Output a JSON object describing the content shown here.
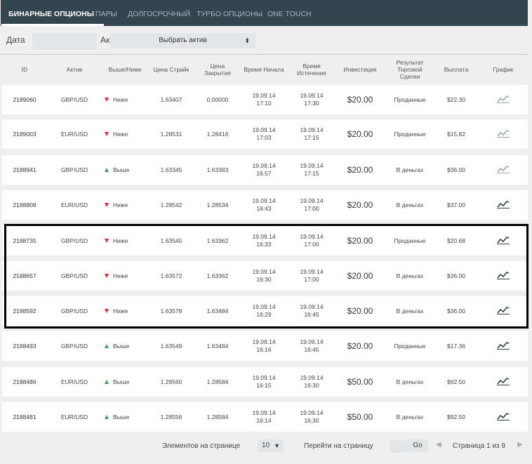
{
  "tabs": [
    {
      "label": "БИНАРНЫЕ ОПЦИОНЫ",
      "active": true
    },
    {
      "label": "ПАРЫ",
      "active": false
    },
    {
      "label": "ДОЛГОСРОЧНЫЙ",
      "active": false
    },
    {
      "label": "ТУРБО ОПЦИОНЫ",
      "active": false
    },
    {
      "label": "ONE TOUCH",
      "active": false
    }
  ],
  "filters": {
    "date_label": "Дата",
    "date_value": "",
    "asset_label": "Актив",
    "asset_select": "Выбрать актив"
  },
  "columns": [
    "ID",
    "Актив",
    "Выше/Ниже",
    "Цена Страйк",
    "Цена\nЗакрытия",
    "Время Начала",
    "Время\nИстечения",
    "Инвестиция",
    "Результат\nТорговой\nСделки",
    "Выплата",
    "График"
  ],
  "rows": [
    {
      "id": "2189060",
      "asset": "GBP/USD",
      "direction": "Ниже",
      "dir_type": "down",
      "strike": "1.63407",
      "close": "0.00000",
      "start": "19.09.14\n17:10",
      "expiry": "19.09.14\n17:30",
      "investment": "$20.00",
      "result": "Проданные",
      "payout": "$22.30",
      "chart_icon": "chart-line-icon",
      "chart_active": false
    },
    {
      "id": "2189003",
      "asset": "EUR/USD",
      "direction": "Ниже",
      "dir_type": "down",
      "strike": "1.28531",
      "close": "1.28416",
      "start": "19.09.14\n17:03",
      "expiry": "19.09.14\n17:15",
      "investment": "$20.00",
      "result": "Проданные",
      "payout": "$15.82",
      "chart_icon": "chart-line-icon",
      "chart_active": false
    },
    {
      "id": "2188941",
      "asset": "GBP/USD",
      "direction": "Выше",
      "dir_type": "up",
      "strike": "1.63345",
      "close": "1.63383",
      "start": "19.09.14\n16:57",
      "expiry": "19.09.14\n17:15",
      "investment": "$20.00",
      "result": "В деньгах",
      "payout": "$36.00",
      "chart_icon": "chart-line-icon",
      "chart_active": false
    },
    {
      "id": "2188808",
      "asset": "EUR/USD",
      "direction": "Ниже",
      "dir_type": "down",
      "strike": "1.28542",
      "close": "1.28534",
      "start": "19.09.14\n16:43",
      "expiry": "19.09.14\n17:00",
      "investment": "$20.00",
      "result": "В деньгах",
      "payout": "$37.00",
      "chart_icon": "chart-line-icon",
      "chart_active": true
    },
    {
      "id": "2188735",
      "asset": "GBP/USD",
      "direction": "Ниже",
      "dir_type": "down",
      "strike": "1.63545",
      "close": "1.63362",
      "start": "19.09.14\n16:33",
      "expiry": "19.09.14\n17:00",
      "investment": "$20.00",
      "result": "Проданные",
      "payout": "$20.68",
      "chart_icon": "chart-line-icon",
      "chart_active": true
    },
    {
      "id": "2188657",
      "asset": "GBP/USD",
      "direction": "Ниже",
      "dir_type": "down",
      "strike": "1.63572",
      "close": "1.63362",
      "start": "19.09.14\n16:30",
      "expiry": "19.09.14\n17:00",
      "investment": "$20.00",
      "result": "В деньгах",
      "payout": "$36.00",
      "chart_icon": "chart-line-icon",
      "chart_active": true
    },
    {
      "id": "2188592",
      "asset": "GBP/USD",
      "direction": "Ниже",
      "dir_type": "down",
      "strike": "1.63578",
      "close": "1.63484",
      "start": "19.09.14\n16:29",
      "expiry": "19.09.14\n16:45",
      "investment": "$20.00",
      "result": "В деньгах",
      "payout": "$36.00",
      "chart_icon": "chart-line-icon",
      "chart_active": true
    },
    {
      "id": "2188493",
      "asset": "GBP/USD",
      "direction": "Выше",
      "dir_type": "up",
      "strike": "1.63549",
      "close": "1.63484",
      "start": "19.09.14\n16:16",
      "expiry": "19.09.14\n16:45",
      "investment": "$20.00",
      "result": "Проданные",
      "payout": "$17.36",
      "chart_icon": "chart-line-icon",
      "chart_active": true
    },
    {
      "id": "2188486",
      "asset": "EUR/USD",
      "direction": "Выше",
      "dir_type": "up",
      "strike": "1.28560",
      "close": "1.28584",
      "start": "19.09.14\n16:15",
      "expiry": "19.09.14\n16:30",
      "investment": "$50.00",
      "result": "В деньгах",
      "payout": "$92.50",
      "chart_icon": "chart-line-icon",
      "chart_active": true
    },
    {
      "id": "2188481",
      "asset": "EUR/USD",
      "direction": "Выше",
      "dir_type": "up",
      "strike": "1.28556",
      "close": "1.28584",
      "start": "19.09.14\n16:14",
      "expiry": "19.09.14\n16:30",
      "investment": "$50.00",
      "result": "В деньгах",
      "payout": "$92.50",
      "chart_icon": "chart-line-icon",
      "chart_active": true
    }
  ],
  "footer": {
    "per_page_label": "Элементов на странице",
    "per_page_value": "10",
    "goto_label": "Перейти на страницу",
    "page_input": "",
    "go_label": "Go",
    "page_info": "Страница 1 из 9",
    "prev_icon": "chevron-left-icon",
    "next_icon": "chevron-right-icon"
  },
  "colors": {
    "tabbar_bg": "#33464f",
    "down": "#e1263a",
    "up": "#3aa35b",
    "chart_active": "#2f3f46",
    "chart_inactive": "#9aa6ac"
  }
}
